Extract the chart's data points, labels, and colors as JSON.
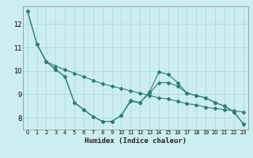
{
  "xlabel": "Humidex (Indice chaleur)",
  "bg_color": "#cceef0",
  "grid_color": "#aadddd",
  "line_color": "#2e7d6e",
  "xlim": [
    -0.5,
    23.5
  ],
  "ylim": [
    7.5,
    12.75
  ],
  "yticks": [
    8,
    9,
    10,
    11,
    12
  ],
  "xticks": [
    0,
    1,
    2,
    3,
    4,
    5,
    6,
    7,
    8,
    9,
    10,
    11,
    12,
    13,
    14,
    15,
    16,
    17,
    18,
    19,
    20,
    21,
    22,
    23
  ],
  "line1_x": [
    0,
    1,
    2,
    3,
    4,
    5,
    6,
    7,
    8,
    9,
    10,
    11,
    12,
    13,
    14,
    15,
    16,
    17,
    18,
    19,
    20,
    21,
    22,
    23
  ],
  "line1_y": [
    12.55,
    11.15,
    10.4,
    10.05,
    9.75,
    8.65,
    8.35,
    8.05,
    7.85,
    7.85,
    8.1,
    8.7,
    8.65,
    9.05,
    9.5,
    9.5,
    9.35,
    9.05,
    8.95,
    8.85,
    8.65,
    8.5,
    8.25,
    7.75
  ],
  "line2_x": [
    1,
    2,
    3,
    4,
    5,
    6,
    7,
    8,
    9,
    10,
    11,
    12,
    13,
    14,
    15,
    16,
    17,
    18,
    19,
    20,
    21,
    22,
    23
  ],
  "line2_y": [
    11.15,
    10.4,
    10.2,
    10.05,
    9.9,
    9.75,
    9.6,
    9.45,
    9.35,
    9.25,
    9.15,
    9.05,
    8.95,
    8.85,
    8.8,
    8.7,
    8.6,
    8.55,
    8.45,
    8.4,
    8.35,
    8.3,
    8.25
  ],
  "line3_x": [
    0,
    1,
    2,
    3,
    4,
    5,
    6,
    7,
    8,
    9,
    10,
    11,
    12,
    13,
    14,
    15,
    16,
    17,
    18,
    19,
    20,
    21,
    22,
    23
  ],
  "line3_y": [
    12.55,
    11.15,
    10.4,
    10.05,
    9.75,
    8.65,
    8.35,
    8.05,
    7.85,
    7.85,
    8.1,
    8.75,
    8.65,
    9.1,
    9.95,
    9.85,
    9.5,
    9.05,
    8.95,
    8.85,
    8.65,
    8.5,
    8.25,
    7.75
  ]
}
